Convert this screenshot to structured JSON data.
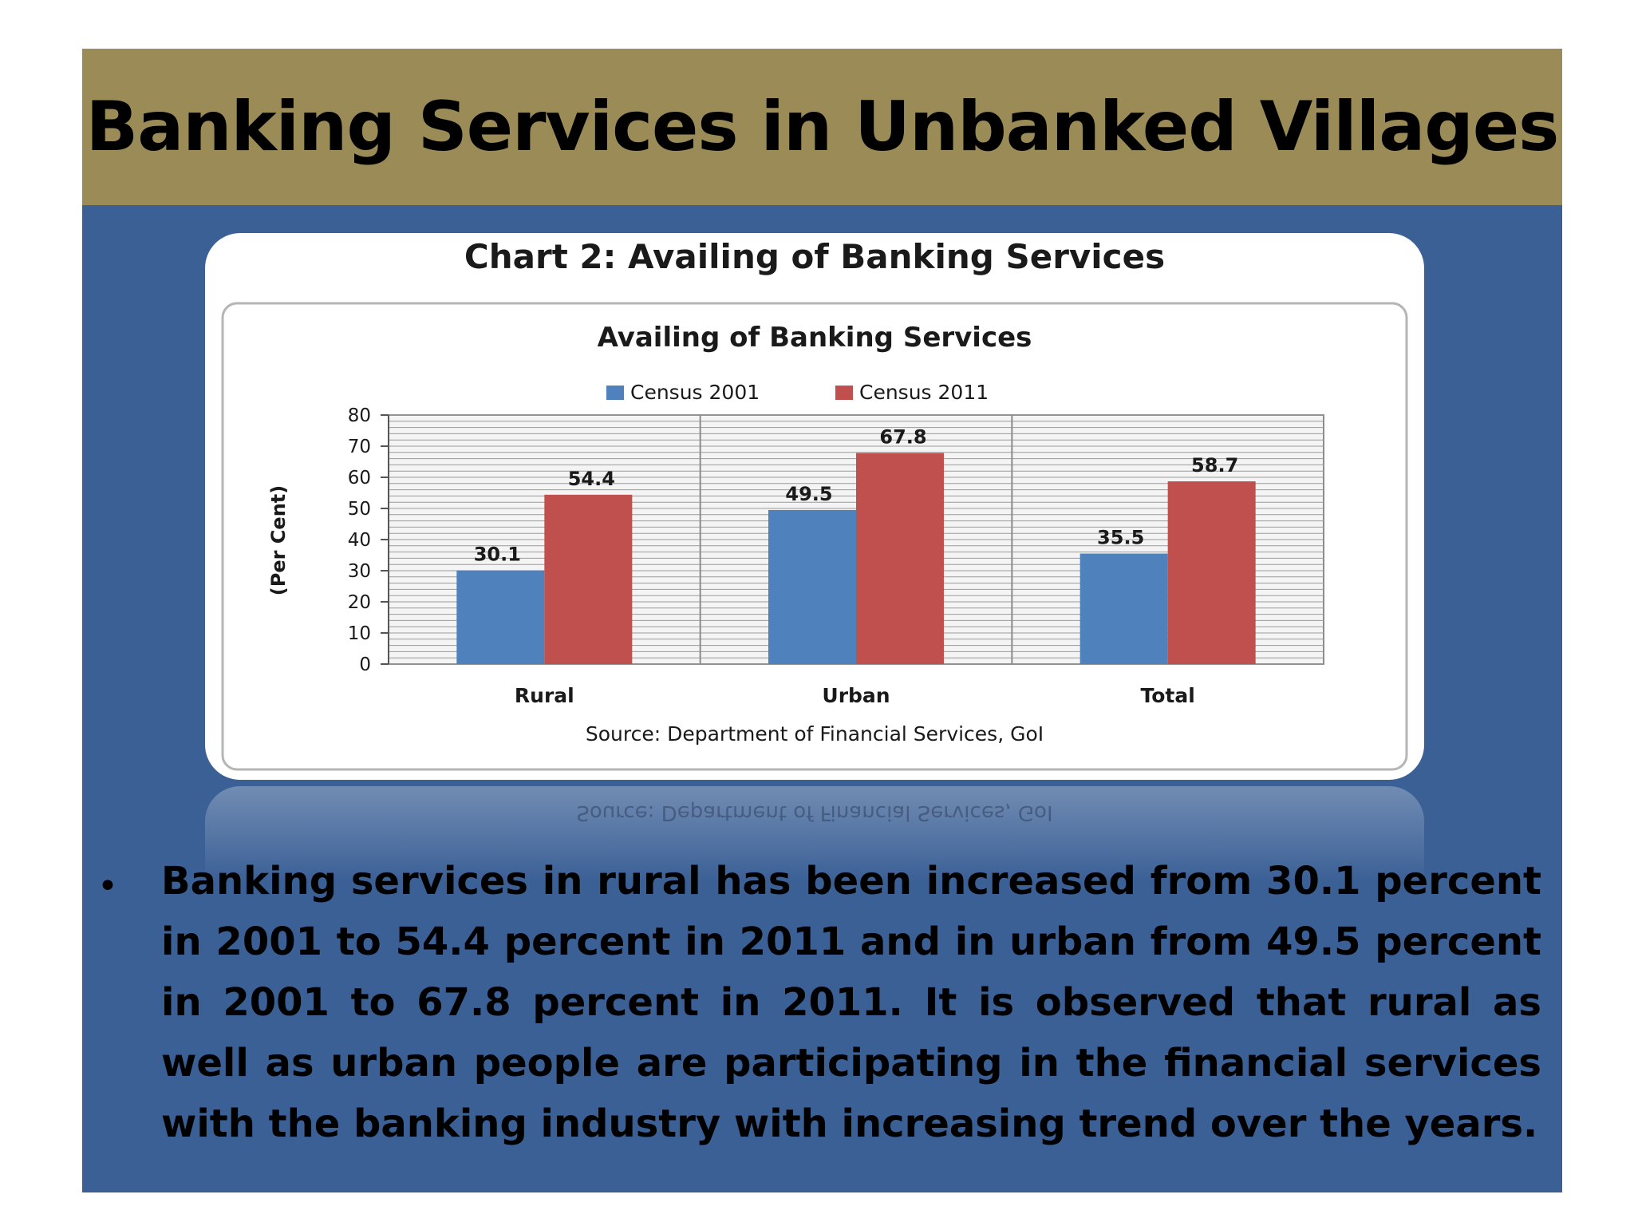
{
  "slide": {
    "title": "Banking Services in Unbanked Villages",
    "bullet_symbol": "•",
    "bullet_text": "Banking services in rural has been increased from 30.1 percent in 2001 to 54.4 percent in 2011 and in urban from 49.5 percent in 2001 to 67.8 percent in 2011. It is observed that rural as well as urban people are participating in the financial services with the banking industry with increasing trend over the years."
  },
  "colors": {
    "title_band": "#9a8b57",
    "slide_background": "#3b6096",
    "series_2001": "#4f81bd",
    "series_2011": "#c0504d"
  },
  "chart_data": {
    "type": "bar",
    "caption": "Chart 2: Availing of Banking Services",
    "title": "Availing of Banking Services",
    "xlabel": "",
    "ylabel": "(Per Cent)",
    "source": "Source: Department of Financial Services, GoI",
    "categories": [
      "Rural",
      "Urban",
      "Total"
    ],
    "series": [
      {
        "name": "Census 2001",
        "values": [
          30.1,
          49.5,
          35.5
        ],
        "color": "#4f81bd"
      },
      {
        "name": "Census 2011",
        "values": [
          54.4,
          67.8,
          58.7
        ],
        "color": "#c0504d"
      }
    ],
    "ylim": [
      0,
      80
    ],
    "yticks": [
      0,
      10,
      20,
      30,
      40,
      50,
      60,
      70,
      80
    ],
    "grid": true,
    "legend": "top"
  }
}
